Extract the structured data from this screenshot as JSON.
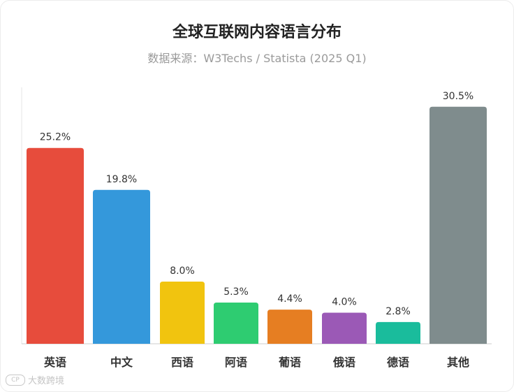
{
  "colors": {
    "title": "#222222",
    "subtitle": "#9a9a9a",
    "axis": "#cccccc",
    "label": "#333333"
  },
  "chart_data": {
    "type": "bar",
    "title": "全球互联网内容语言分布",
    "subtitle": "数据来源：W3Techs / Statista (2025 Q1)",
    "xlabel": "",
    "ylabel": "",
    "ylim": [
      0,
      33
    ],
    "grid": false,
    "legend": "none",
    "categories": [
      "英语",
      "中文",
      "西语",
      "阿语",
      "葡语",
      "俄语",
      "德语",
      "其他"
    ],
    "values": [
      25.2,
      19.8,
      8.0,
      5.3,
      4.4,
      4.0,
      2.8,
      30.5
    ],
    "value_labels": [
      "25.2%",
      "19.8%",
      "8.0%",
      "5.3%",
      "4.4%",
      "4.0%",
      "2.8%",
      "30.5%"
    ],
    "bar_colors": [
      "#e74c3c",
      "#3498db",
      "#f1c40f",
      "#2ecc71",
      "#e67e22",
      "#9b59b6",
      "#1abc9c",
      "#7f8c8d"
    ]
  },
  "watermark": {
    "logo_text": "CP",
    "text": "大数跨境"
  }
}
